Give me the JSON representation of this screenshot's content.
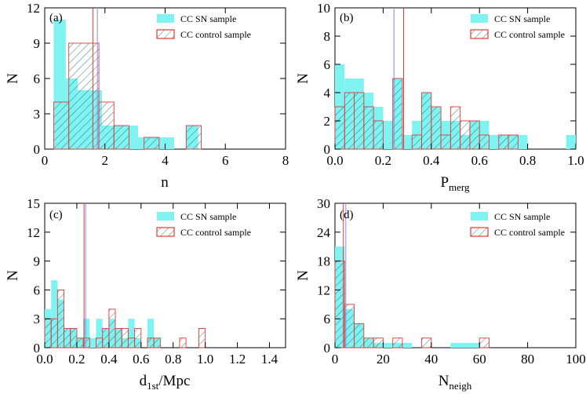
{
  "colors": {
    "sn": "#7ff2f2",
    "control": "#e53935",
    "sn_median": "#8888ee",
    "control_median": "#e53935",
    "hatch": "#1f6f6f"
  },
  "chart_data": [
    {
      "type": "bar",
      "panel": "(a)",
      "ylabel": "N",
      "xlabel": "n",
      "xlabel_sub": "",
      "xlim": [
        0,
        8
      ],
      "ylim": [
        0,
        12
      ],
      "xticks": [
        0,
        2,
        4,
        6,
        8
      ],
      "yticks": [
        0,
        3,
        6,
        9,
        12
      ],
      "xtick_labels": [
        "0",
        "2",
        "4",
        "6",
        "8"
      ],
      "ytick_labels": [
        "0",
        "3",
        "6",
        "9",
        "12"
      ],
      "legend": [
        "CC SN sample",
        "CC control sample"
      ],
      "legend_position": "top-right",
      "sn_series": {
        "name": "CC SN sample",
        "bins": [
          [
            0.3,
            0.7
          ],
          [
            0.7,
            1.1
          ],
          [
            1.1,
            1.5
          ],
          [
            1.5,
            1.9
          ],
          [
            1.9,
            2.3
          ],
          [
            2.3,
            2.7
          ],
          [
            2.7,
            3.1
          ],
          [
            3.1,
            3.5
          ],
          [
            3.5,
            3.9
          ],
          [
            3.9,
            4.3
          ],
          [
            4.3,
            4.7
          ],
          [
            4.7,
            5.1
          ]
        ],
        "values": [
          11,
          6,
          5,
          5,
          2,
          2,
          2,
          1,
          1,
          1,
          0,
          2
        ]
      },
      "control_series": {
        "name": "CC control sample",
        "bins": [
          [
            0.3,
            0.8
          ],
          [
            0.8,
            1.8
          ],
          [
            1.8,
            2.3
          ],
          [
            2.3,
            2.8
          ],
          [
            3.3,
            3.8
          ],
          [
            4.7,
            5.2
          ]
        ],
        "values": [
          4,
          9,
          4,
          2,
          1,
          2
        ]
      },
      "sn_median": 1.75,
      "control_median": 1.6
    },
    {
      "type": "bar",
      "panel": "(b)",
      "ylabel": "N",
      "xlabel": "P",
      "xlabel_sub": "merg",
      "xlim": [
        0,
        1.0
      ],
      "ylim": [
        0,
        10
      ],
      "xticks": [
        0,
        0.2,
        0.4,
        0.6,
        0.8,
        1.0
      ],
      "yticks": [
        0,
        2,
        4,
        6,
        8,
        10
      ],
      "xtick_labels": [
        "0.0",
        "0.2",
        "0.4",
        "0.6",
        "0.8",
        "1.0"
      ],
      "ytick_labels": [
        "0",
        "2",
        "4",
        "6",
        "8",
        "10"
      ],
      "legend": [
        "CC SN sample",
        "CC control sample"
      ],
      "legend_position": "top-right",
      "sn_series": {
        "name": "CC SN sample",
        "bins": [
          [
            0,
            0.04
          ],
          [
            0.04,
            0.08
          ],
          [
            0.08,
            0.12
          ],
          [
            0.12,
            0.16
          ],
          [
            0.16,
            0.2
          ],
          [
            0.2,
            0.24
          ],
          [
            0.24,
            0.28
          ],
          [
            0.28,
            0.32
          ],
          [
            0.32,
            0.36
          ],
          [
            0.36,
            0.4
          ],
          [
            0.4,
            0.44
          ],
          [
            0.44,
            0.48
          ],
          [
            0.48,
            0.52
          ],
          [
            0.52,
            0.56
          ],
          [
            0.56,
            0.6
          ],
          [
            0.6,
            0.64
          ],
          [
            0.64,
            0.68
          ],
          [
            0.68,
            0.72
          ],
          [
            0.72,
            0.76
          ],
          [
            0.76,
            0.8
          ],
          [
            0.96,
            1.0
          ]
        ],
        "values": [
          6,
          5,
          5,
          4,
          3,
          2,
          5,
          1,
          2,
          4,
          3,
          2,
          2,
          1,
          2,
          2,
          1,
          1,
          1,
          1,
          1
        ]
      },
      "control_series": {
        "name": "CC control sample",
        "bins": [
          [
            0,
            0.04
          ],
          [
            0.04,
            0.08
          ],
          [
            0.08,
            0.12
          ],
          [
            0.12,
            0.16
          ],
          [
            0.16,
            0.2
          ],
          [
            0.2,
            0.24
          ],
          [
            0.24,
            0.28
          ],
          [
            0.28,
            0.32
          ],
          [
            0.32,
            0.36
          ],
          [
            0.36,
            0.4
          ],
          [
            0.4,
            0.44
          ],
          [
            0.44,
            0.48
          ],
          [
            0.48,
            0.52
          ],
          [
            0.52,
            0.56
          ],
          [
            0.56,
            0.6
          ],
          [
            0.6,
            0.64
          ],
          [
            0.64,
            0.68
          ],
          [
            0.68,
            0.72
          ],
          [
            0.72,
            0.76
          ],
          [
            0.76,
            0.8
          ]
        ],
        "values": [
          3,
          4,
          4,
          3,
          2,
          0,
          5,
          0,
          1,
          4,
          3,
          1,
          3,
          2,
          2,
          1,
          0,
          1,
          1,
          0
        ]
      },
      "sn_median": 0.245,
      "control_median": 0.285
    },
    {
      "type": "bar",
      "panel": "(c)",
      "ylabel": "N",
      "xlabel": "d",
      "xlabel_sub": "1st",
      "xlabel_suffix": "/Mpc",
      "xlim": [
        0,
        1.5
      ],
      "ylim": [
        0,
        15
      ],
      "xticks": [
        0,
        0.2,
        0.4,
        0.6,
        0.8,
        1.0,
        1.2,
        1.4
      ],
      "yticks": [
        0,
        3,
        6,
        9,
        12,
        15
      ],
      "xtick_labels": [
        "0.0",
        "0.2",
        "0.4",
        "0.6",
        "0.8",
        "1.0",
        "1.2",
        "1.4"
      ],
      "ytick_labels": [
        "0",
        "3",
        "6",
        "9",
        "12",
        "15"
      ],
      "legend": [
        "CC SN sample",
        "CC control sample"
      ],
      "legend_position": "top-right",
      "sn_series": {
        "name": "CC SN sample",
        "bins": [
          [
            0,
            0.04
          ],
          [
            0.04,
            0.08
          ],
          [
            0.08,
            0.12
          ],
          [
            0.12,
            0.16
          ],
          [
            0.16,
            0.2
          ],
          [
            0.2,
            0.24
          ],
          [
            0.24,
            0.28
          ],
          [
            0.28,
            0.32
          ],
          [
            0.32,
            0.36
          ],
          [
            0.36,
            0.4
          ],
          [
            0.4,
            0.44
          ],
          [
            0.44,
            0.48
          ],
          [
            0.48,
            0.52
          ],
          [
            0.52,
            0.56
          ],
          [
            0.56,
            0.6
          ],
          [
            0.6,
            0.64
          ],
          [
            0.64,
            0.68
          ],
          [
            0.68,
            0.72
          ]
        ],
        "values": [
          4,
          7,
          5,
          2,
          2,
          1,
          3,
          1,
          3,
          2,
          3,
          2,
          1,
          3,
          1,
          0,
          3,
          1
        ]
      },
      "control_series": {
        "name": "CC control sample",
        "bins": [
          [
            0,
            0.04
          ],
          [
            0.04,
            0.08
          ],
          [
            0.08,
            0.12
          ],
          [
            0.12,
            0.16
          ],
          [
            0.16,
            0.2
          ],
          [
            0.2,
            0.24
          ],
          [
            0.24,
            0.28
          ],
          [
            0.32,
            0.36
          ],
          [
            0.36,
            0.4
          ],
          [
            0.4,
            0.44
          ],
          [
            0.44,
            0.48
          ],
          [
            0.48,
            0.52
          ],
          [
            0.52,
            0.56
          ],
          [
            0.56,
            0.6
          ],
          [
            0.6,
            0.64
          ],
          [
            0.64,
            0.68
          ],
          [
            0.68,
            0.72
          ],
          [
            0.84,
            0.88
          ],
          [
            0.96,
            1.0
          ]
        ],
        "values": [
          3,
          3,
          6,
          2,
          2,
          1,
          1,
          1,
          2,
          4,
          2,
          2,
          1,
          2,
          0,
          1,
          1,
          1,
          2
        ]
      },
      "sn_median": 0.255,
      "control_median": 0.245
    },
    {
      "type": "bar",
      "panel": "(d)",
      "ylabel": "N",
      "xlabel": "N",
      "xlabel_sub": "neigh",
      "xlim": [
        0,
        100
      ],
      "ylim": [
        0,
        30
      ],
      "xticks": [
        0,
        20,
        40,
        60,
        80,
        100
      ],
      "yticks": [
        0,
        6,
        12,
        18,
        24,
        30
      ],
      "xtick_labels": [
        "0",
        "20",
        "40",
        "60",
        "80",
        "100"
      ],
      "ytick_labels": [
        "0",
        "6",
        "12",
        "18",
        "24",
        "30"
      ],
      "legend": [
        "CC SN sample",
        "CC control sample"
      ],
      "legend_position": "top-right",
      "sn_series": {
        "name": "CC SN sample",
        "bins": [
          [
            0,
            4
          ],
          [
            4,
            8
          ],
          [
            8,
            12
          ],
          [
            12,
            16
          ],
          [
            16,
            20
          ],
          [
            20,
            24
          ],
          [
            24,
            28
          ],
          [
            28,
            32
          ],
          [
            48,
            52
          ],
          [
            52,
            56
          ],
          [
            56,
            60
          ]
        ],
        "values": [
          21,
          8,
          5,
          2,
          1,
          1,
          1,
          1,
          1,
          1,
          1
        ]
      },
      "control_series": {
        "name": "CC control sample",
        "bins": [
          [
            0,
            4
          ],
          [
            4,
            8
          ],
          [
            8,
            12
          ],
          [
            12,
            16
          ],
          [
            16,
            20
          ],
          [
            24,
            28
          ],
          [
            36,
            40
          ],
          [
            60,
            64
          ]
        ],
        "values": [
          18,
          9,
          5,
          2,
          2,
          2,
          2,
          2
        ]
      },
      "sn_median": 4.5,
      "control_median": 3.5
    }
  ]
}
